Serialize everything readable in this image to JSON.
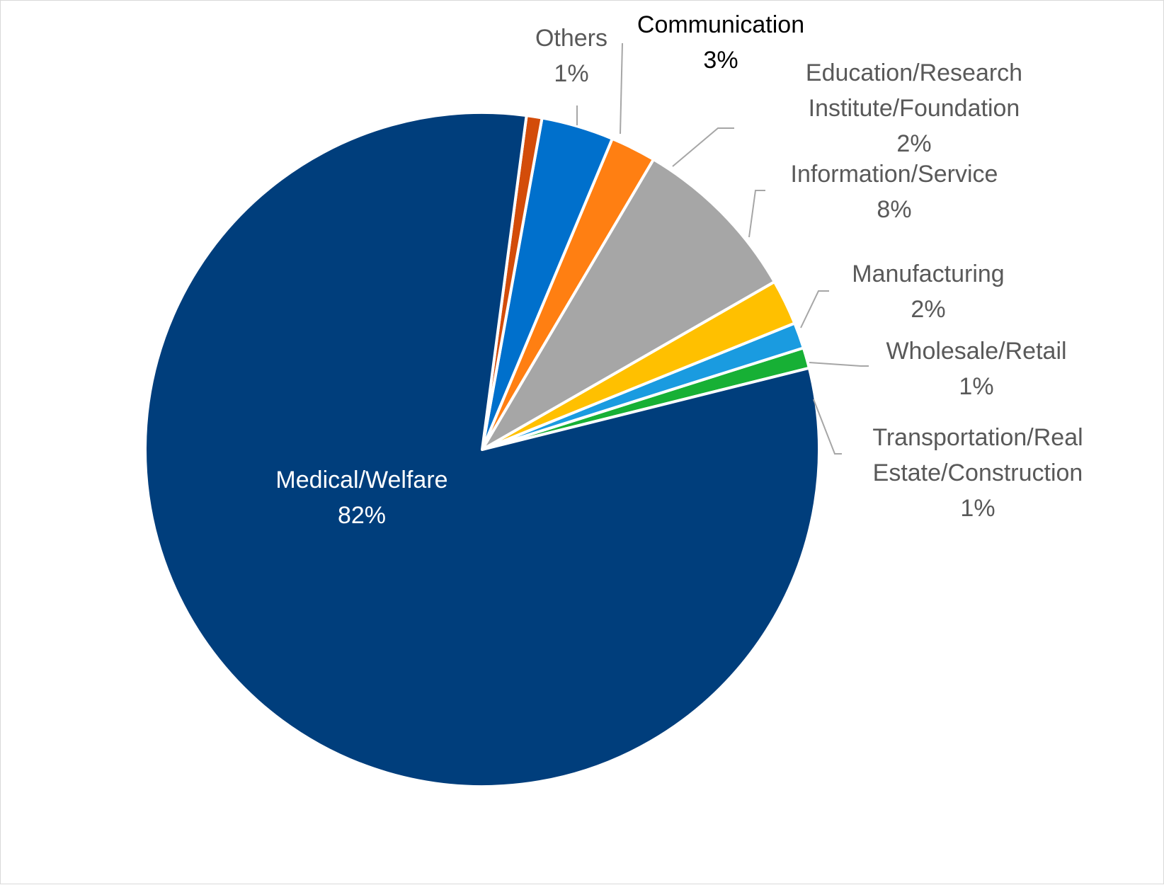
{
  "chart_data": {
    "type": "pie",
    "title": "",
    "start_angle_deg": -14,
    "slices": [
      {
        "label": "Transportation/Real Estate/Construction",
        "label_lines": [
          "Transportation/Real",
          "Estate/Construction"
        ],
        "value": 0.01,
        "percent_text": "1%",
        "color": "#17b035",
        "text_color": "#595959"
      },
      {
        "label": "Wholesale/Retail",
        "label_lines": [
          "Wholesale/Retail"
        ],
        "value": 0.0125,
        "percent_text": "1%",
        "color": "#1a9be0",
        "text_color": "#595959"
      },
      {
        "label": "Manufacturing",
        "label_lines": [
          "Manufacturing"
        ],
        "value": 0.022,
        "percent_text": "2%",
        "color": "#ffc000",
        "text_color": "#595959"
      },
      {
        "label": "Information/Service",
        "label_lines": [
          "Information/Service"
        ],
        "value": 0.083,
        "percent_text": "8%",
        "color": "#a6a6a6",
        "text_color": "#595959"
      },
      {
        "label": "Education/Research Institute/Foundation",
        "label_lines": [
          "Education/Research",
          "Institute/Foundation"
        ],
        "value": 0.022,
        "percent_text": "2%",
        "color": "#ff7f12",
        "text_color": "#595959"
      },
      {
        "label": "Communication",
        "label_lines": [
          "Communication"
        ],
        "value": 0.035,
        "percent_text": "3%",
        "color": "#0070cc",
        "text_color": "#000000"
      },
      {
        "label": "Others",
        "label_lines": [
          "Others"
        ],
        "value": 0.0075,
        "percent_text": "1%",
        "color": "#d34c0a",
        "text_color": "#595959"
      },
      {
        "label": "Medical/Welfare",
        "label_lines": [
          "Medical/Welfare"
        ],
        "value": 0.818,
        "percent_text": "82%",
        "color": "#003e7c",
        "text_color": "#ffffff"
      }
    ]
  }
}
